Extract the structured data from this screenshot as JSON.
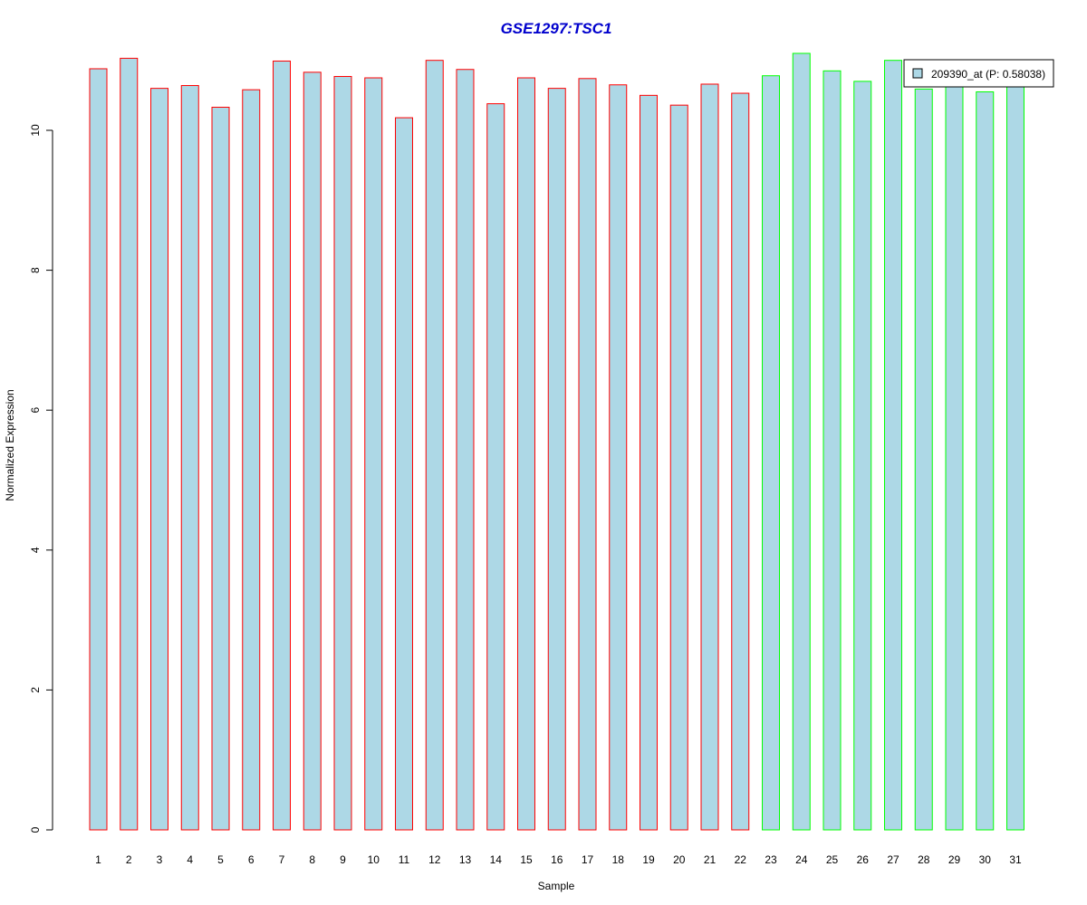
{
  "chart_data": {
    "type": "bar",
    "title": "GSE1297:TSC1",
    "xlabel": "Sample",
    "ylabel": "Normalized Expression",
    "categories": [
      "1",
      "2",
      "3",
      "4",
      "5",
      "6",
      "7",
      "8",
      "9",
      "10",
      "11",
      "12",
      "13",
      "14",
      "15",
      "16",
      "17",
      "18",
      "19",
      "20",
      "21",
      "22",
      "23",
      "24",
      "25",
      "26",
      "27",
      "28",
      "29",
      "30",
      "31"
    ],
    "series": [
      {
        "name": "209390_at (P: 0.58038)",
        "values": [
          10.88,
          11.03,
          10.6,
          10.64,
          10.33,
          10.58,
          10.99,
          10.83,
          10.77,
          10.75,
          10.18,
          11.0,
          10.87,
          10.38,
          10.75,
          10.6,
          10.74,
          10.65,
          10.5,
          10.36,
          10.66,
          10.53,
          10.78,
          11.1,
          10.85,
          10.7,
          11.0,
          10.59,
          10.67,
          10.55,
          10.67
        ]
      }
    ],
    "bar_groups": [
      "red",
      "red",
      "red",
      "red",
      "red",
      "red",
      "red",
      "red",
      "red",
      "red",
      "red",
      "red",
      "red",
      "red",
      "red",
      "red",
      "red",
      "red",
      "red",
      "red",
      "red",
      "red",
      "green",
      "green",
      "green",
      "green",
      "green",
      "green",
      "green",
      "green",
      "green"
    ],
    "yticks": [
      0,
      2,
      4,
      6,
      8,
      10
    ],
    "ylim": [
      0,
      11.4
    ],
    "grid": false,
    "legend_position": "top-right",
    "colors": {
      "bar_fill": "#add8e6",
      "red_group_border": "#ff0000",
      "green_group_border": "#00ff00",
      "title": "#0000cd",
      "axis": "#000000"
    }
  }
}
